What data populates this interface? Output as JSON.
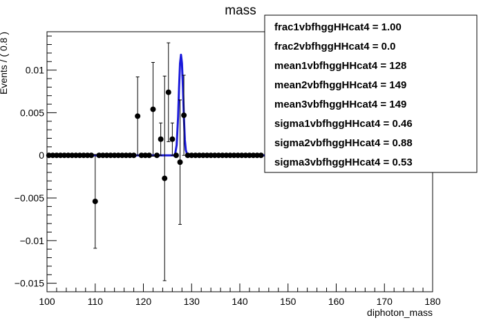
{
  "chart_data": {
    "type": "scatter",
    "title": "mass",
    "xlabel": "diphoton_mass",
    "ylabel": "Events / ( 0.8 )",
    "xlim": [
      100,
      180
    ],
    "ylim": [
      -0.016,
      0.0145
    ],
    "xticks": [
      100,
      110,
      120,
      130,
      140,
      150,
      160,
      170,
      180
    ],
    "xtick_labels": [
      "100",
      "110",
      "120",
      "130",
      "140",
      "150",
      "160",
      "170",
      "180"
    ],
    "yticks": [
      -0.015,
      -0.01,
      -0.005,
      0,
      0.005,
      0.01
    ],
    "ytick_labels": [
      "−0.015",
      "−0.01",
      "−0.005",
      "0",
      "0.005",
      "0.01"
    ],
    "grid": false,
    "series": [
      {
        "kind": "points-with-errors",
        "color": "#000000",
        "x": [
          100.4,
          101.2,
          102.0,
          102.8,
          103.6,
          104.4,
          105.2,
          106.0,
          106.8,
          107.6,
          108.4,
          109.2,
          110.0,
          110.8,
          111.6,
          112.4,
          113.2,
          114.0,
          114.8,
          115.6,
          116.4,
          117.2,
          118.0,
          118.8,
          119.6,
          120.4,
          121.2,
          122.0,
          122.8,
          123.6,
          124.4,
          125.2,
          126.0,
          126.8,
          127.6,
          128.4,
          129.2,
          130.0,
          130.8,
          131.6,
          132.4,
          133.2,
          134.0,
          134.8,
          135.6,
          136.4,
          137.2,
          138.0,
          138.8,
          139.6,
          140.4,
          141.2,
          142.0,
          142.8,
          143.6,
          144.4
        ],
        "y": [
          0,
          0,
          0,
          0,
          0,
          0,
          0,
          0,
          0,
          0,
          0,
          0,
          -0.0054,
          0,
          0,
          0,
          0,
          0,
          0,
          0,
          0,
          0,
          0,
          0.0046,
          0,
          0,
          0,
          0.0054,
          0,
          0.0019,
          -0.0027,
          0.0074,
          0.0019,
          0,
          -0.0008,
          0.0047,
          0,
          0,
          0,
          0,
          0,
          0,
          0,
          0,
          0,
          0,
          0,
          0,
          0,
          0,
          0,
          0,
          0,
          0,
          0,
          0
        ],
        "yerr": [
          0,
          0,
          0,
          0,
          0,
          0,
          0,
          0,
          0,
          0,
          0,
          0,
          0.0055,
          0,
          0,
          0,
          0,
          0,
          0,
          0,
          0,
          0,
          0,
          0.0046,
          0,
          0,
          0,
          0.0055,
          0,
          0.0019,
          0.012,
          0.0058,
          0.0019,
          0,
          0.0073,
          0.0047,
          0,
          0,
          0,
          0,
          0,
          0,
          0,
          0,
          0,
          0,
          0,
          0,
          0,
          0,
          0,
          0,
          0,
          0,
          0,
          0
        ]
      },
      {
        "kind": "curve",
        "color": "#1a1adb",
        "x": [
          100,
          126.3,
          126.6,
          126.9,
          127.2,
          127.4,
          127.6,
          127.8,
          128.0,
          128.2,
          128.4,
          128.6,
          128.8,
          129.1,
          129.4,
          180
        ],
        "y": [
          0,
          0,
          0.0002,
          0.0012,
          0.0045,
          0.008,
          0.0108,
          0.0118,
          0.0108,
          0.008,
          0.0045,
          0.0018,
          0.0006,
          0.0001,
          0,
          0
        ]
      }
    ],
    "legend": {
      "placement": "top-right",
      "entries": [
        "frac1vbfhggHHcat4 =  1.00",
        "frac2vbfhggHHcat4 =  0.0",
        "mean1vbfhggHHcat4 =  128",
        "mean2vbfhggHHcat4 =  149",
        "mean3vbfhggHHcat4 =  149",
        "sigma1vbfhggHHcat4 =  0.46",
        "sigma2vbfhggHHcat4 =  0.88",
        "sigma3vbfhggHHcat4 =  0.53"
      ]
    }
  }
}
